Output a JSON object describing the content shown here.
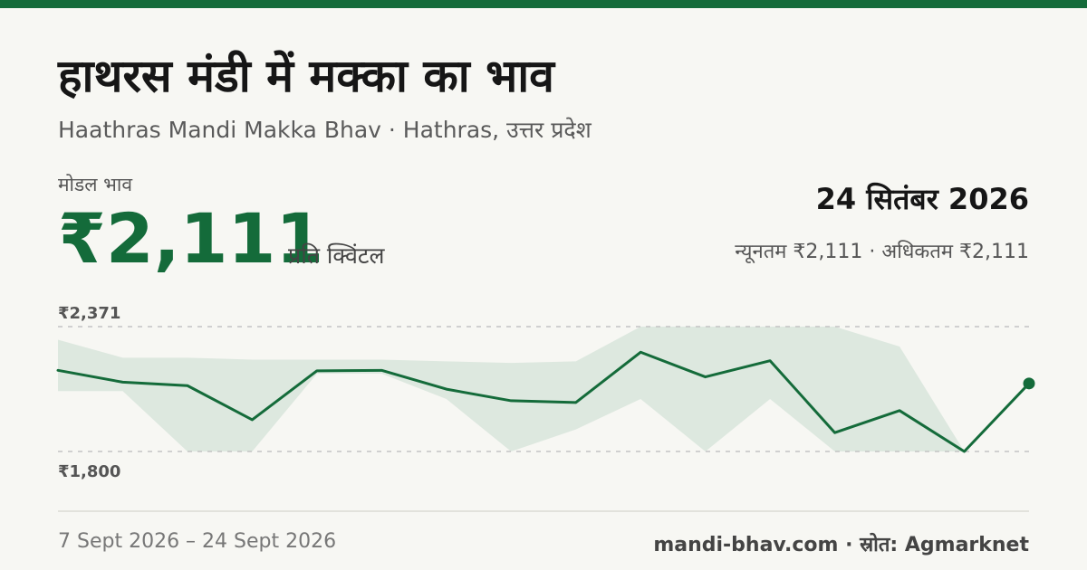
{
  "header": {
    "title": "हाथरस मंडी में मक्का का भाव",
    "subtitle": "Haathras Mandi Makka Bhav · Hathras, उत्तर प्रदेश"
  },
  "price": {
    "label": "मोडल भाव",
    "value": "₹2,111",
    "unit": "प्रति क्विंटल"
  },
  "summary": {
    "date": "24 सितंबर 2026",
    "minmax": "न्यूनतम ₹2,111 · अधिकतम ₹2,111"
  },
  "footer": {
    "range": "7 Sept 2026 – 24 Sept 2026",
    "source": "mandi-bhav.com · स्रोत: Agmarknet"
  },
  "colors": {
    "accent": "#146b3a",
    "band": "#dde8df",
    "background": "#f7f7f3"
  },
  "chart_data": {
    "type": "line",
    "y_ticks": [
      "₹2,371",
      "₹1,800"
    ],
    "ylim": [
      1800,
      2371
    ],
    "series": [
      {
        "values": [
          2171,
          2117,
          2101,
          1945,
          2169,
          2171,
          2085,
          2032,
          2024,
          2254,
          2141,
          2215,
          1886,
          1987,
          1800,
          2111
        ]
      }
    ],
    "min_band": [
      2076,
      2076,
      1800,
      1800,
      2156,
      2156,
      2040,
      1800,
      1901,
      2040,
      1800,
      2040,
      1800,
      1800,
      1800,
      2111
    ],
    "max_band": [
      2311,
      2229,
      2229,
      2220,
      2220,
      2220,
      2212,
      2205,
      2212,
      2371,
      2371,
      2371,
      2371,
      2280,
      1800,
      2111
    ],
    "grid": "dashed"
  }
}
